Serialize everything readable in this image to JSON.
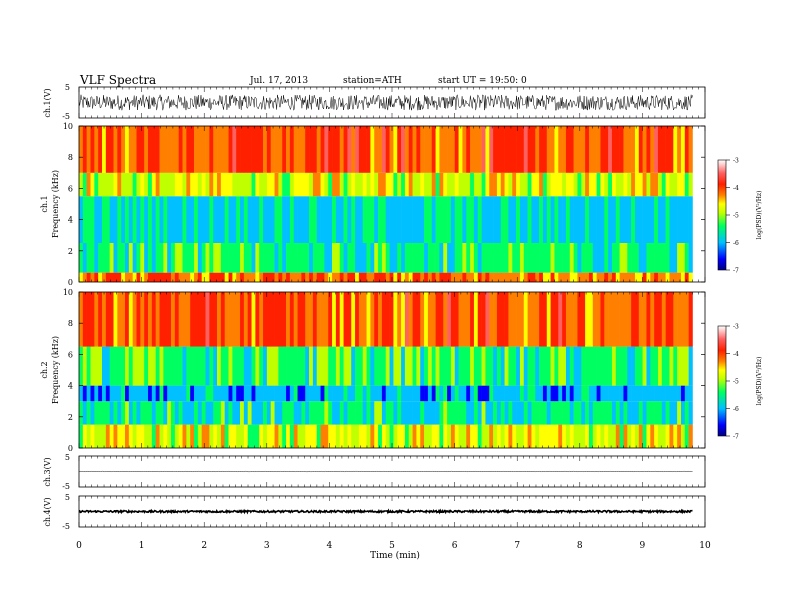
{
  "header": {
    "title": "VLF Spectra",
    "date": "Jul. 17, 2013",
    "station": "station=ATH",
    "start": "start UT = 19:50: 0"
  },
  "colorbar": {
    "label": "log(PSD)(V²/Hz)",
    "ticks": [
      "-3",
      "-4",
      "-5",
      "-6",
      "-7"
    ],
    "range": [
      -7,
      -3
    ],
    "colors": [
      "#000080",
      "#0000ff",
      "#00c0ff",
      "#00ff60",
      "#c0ff00",
      "#ffff00",
      "#ff8000",
      "#ff2000",
      "#ff6060",
      "#ffc0c0",
      "#ffffff"
    ]
  },
  "chart_data": [
    {
      "type": "line",
      "panel": "ch1-waveform",
      "ylabel": "ch.1(V)",
      "ylim": [
        -5,
        5
      ],
      "yticks": [
        "5",
        "-5"
      ],
      "xlim": [
        0,
        10
      ],
      "description_values": {
        "typical_amplitude_V": [
          -2.5,
          2.5
        ],
        "span_min": [
          0,
          9.8
        ]
      }
    },
    {
      "type": "heatmap",
      "panel": "ch1-spectrogram",
      "ylabel_top": "ch.1",
      "ylabel": "Frequency (kHz)",
      "ylim": [
        0,
        10
      ],
      "yticks": [
        "10",
        "8",
        "6",
        "4",
        "2",
        "0"
      ],
      "xlim": [
        0,
        10
      ],
      "data_span_min": [
        0,
        9.8
      ],
      "bands": [
        {
          "freq_kHz": [
            0,
            0.6
          ],
          "logPSD": -4
        },
        {
          "freq_kHz": [
            0.6,
            2.5
          ],
          "logPSD": -5.2
        },
        {
          "freq_kHz": [
            2.5,
            5.5
          ],
          "logPSD": -5.5
        },
        {
          "freq_kHz": [
            5.5,
            7
          ],
          "logPSD": -4.6
        },
        {
          "freq_kHz": [
            7,
            10
          ],
          "logPSD": -3.9
        }
      ]
    },
    {
      "type": "heatmap",
      "panel": "ch2-spectrogram",
      "ylabel_top": "ch.2",
      "ylabel": "Frequency (kHz)",
      "ylim": [
        0,
        10
      ],
      "yticks": [
        "10",
        "8",
        "6",
        "4",
        "2",
        "0"
      ],
      "xlim": [
        0,
        10
      ],
      "data_span_min": [
        0,
        9.8
      ],
      "bands": [
        {
          "freq_kHz": [
            0,
            1.5
          ],
          "logPSD": -4.6
        },
        {
          "freq_kHz": [
            1.5,
            3
          ],
          "logPSD": -5.3
        },
        {
          "freq_kHz": [
            3,
            4
          ],
          "logPSD": -5.7
        },
        {
          "freq_kHz": [
            4,
            6.5
          ],
          "logPSD": -5.1
        },
        {
          "freq_kHz": [
            6.5,
            10
          ],
          "logPSD": -3.9
        }
      ]
    },
    {
      "type": "line",
      "panel": "ch3-waveform",
      "ylabel": "ch.3(V)",
      "ylim": [
        -5,
        5
      ],
      "yticks": [
        "5",
        "-5"
      ],
      "xlim": [
        0,
        10
      ],
      "description_values": {
        "typical_amplitude_V": [
          -0.1,
          0.1
        ],
        "span_min": [
          0,
          9.8
        ]
      }
    },
    {
      "type": "line",
      "panel": "ch4-waveform",
      "ylabel": "ch.4(V)",
      "ylim": [
        -5,
        5
      ],
      "yticks": [
        "5",
        "-5"
      ],
      "xlim": [
        0,
        10
      ],
      "description_values": {
        "typical_amplitude_V": [
          -0.3,
          0.3
        ],
        "span_min": [
          0,
          9.8
        ]
      }
    }
  ],
  "xaxis": {
    "label": "Time (min)",
    "ticks": [
      "0",
      "1",
      "2",
      "3",
      "4",
      "5",
      "6",
      "7",
      "8",
      "9",
      "10"
    ]
  }
}
